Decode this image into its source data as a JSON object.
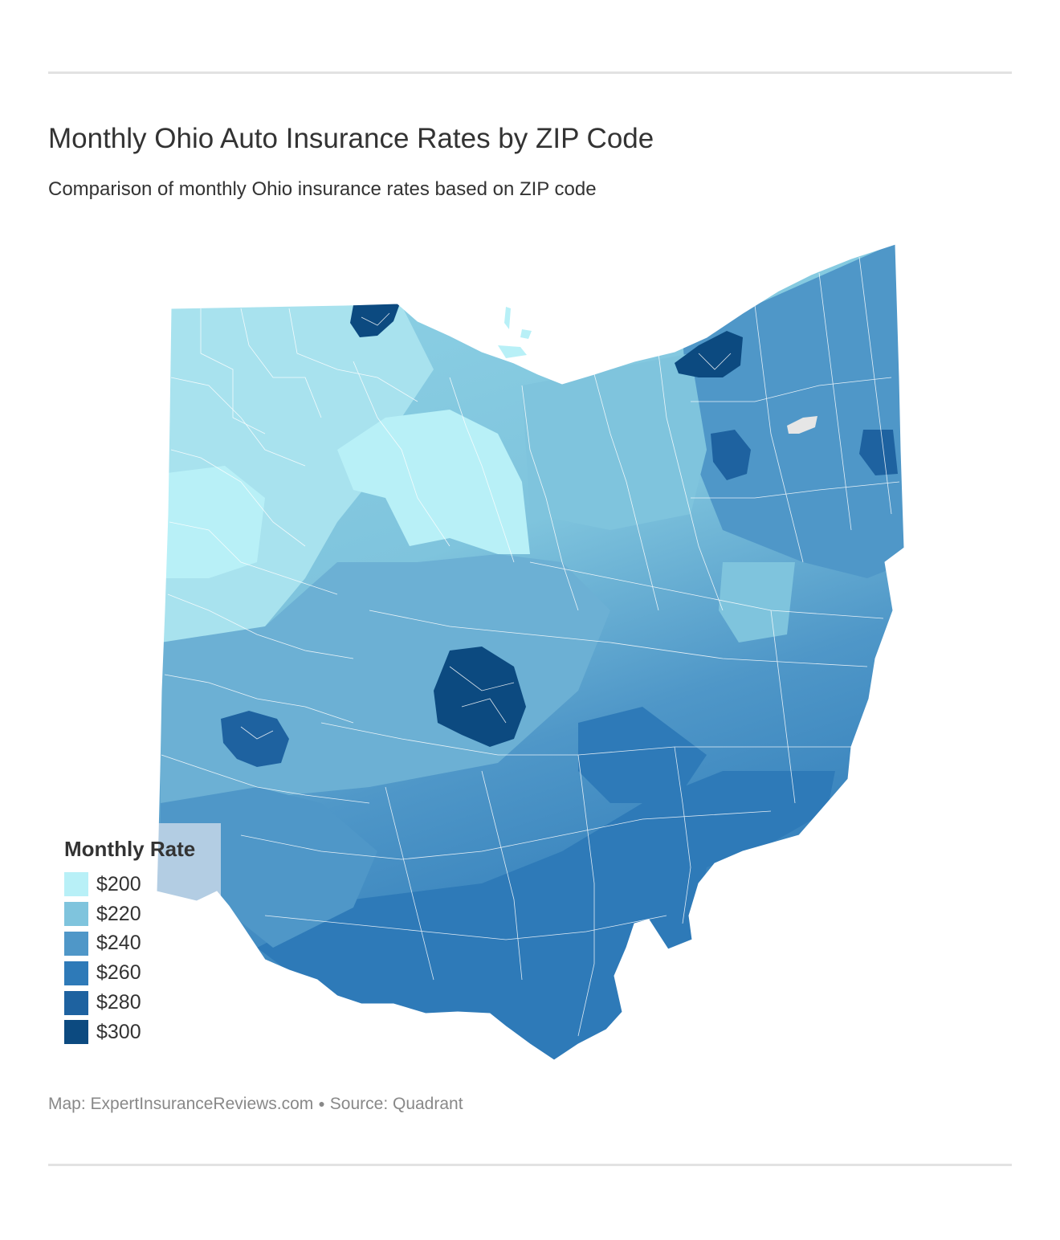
{
  "header": {
    "title": "Monthly Ohio Auto Insurance Rates by ZIP Code",
    "subtitle": "Comparison of monthly Ohio insurance rates based on ZIP code"
  },
  "legend": {
    "title": "Monthly Rate",
    "items": [
      {
        "label": "$200",
        "color": "#b8f0f7"
      },
      {
        "label": "$220",
        "color": "#7fc4dd"
      },
      {
        "label": "$240",
        "color": "#4f97c8"
      },
      {
        "label": "$260",
        "color": "#2e7ab8"
      },
      {
        "label": "$280",
        "color": "#1e62a0"
      },
      {
        "label": "$300",
        "color": "#0c4a80"
      }
    ]
  },
  "credit": {
    "map": "Map: ExpertInsuranceReviews.com",
    "source": "Source: Quadrant"
  },
  "colors": {
    "rule": "#e2e2e2",
    "lake": "#e6e6e6",
    "border": "#ffffff"
  }
}
